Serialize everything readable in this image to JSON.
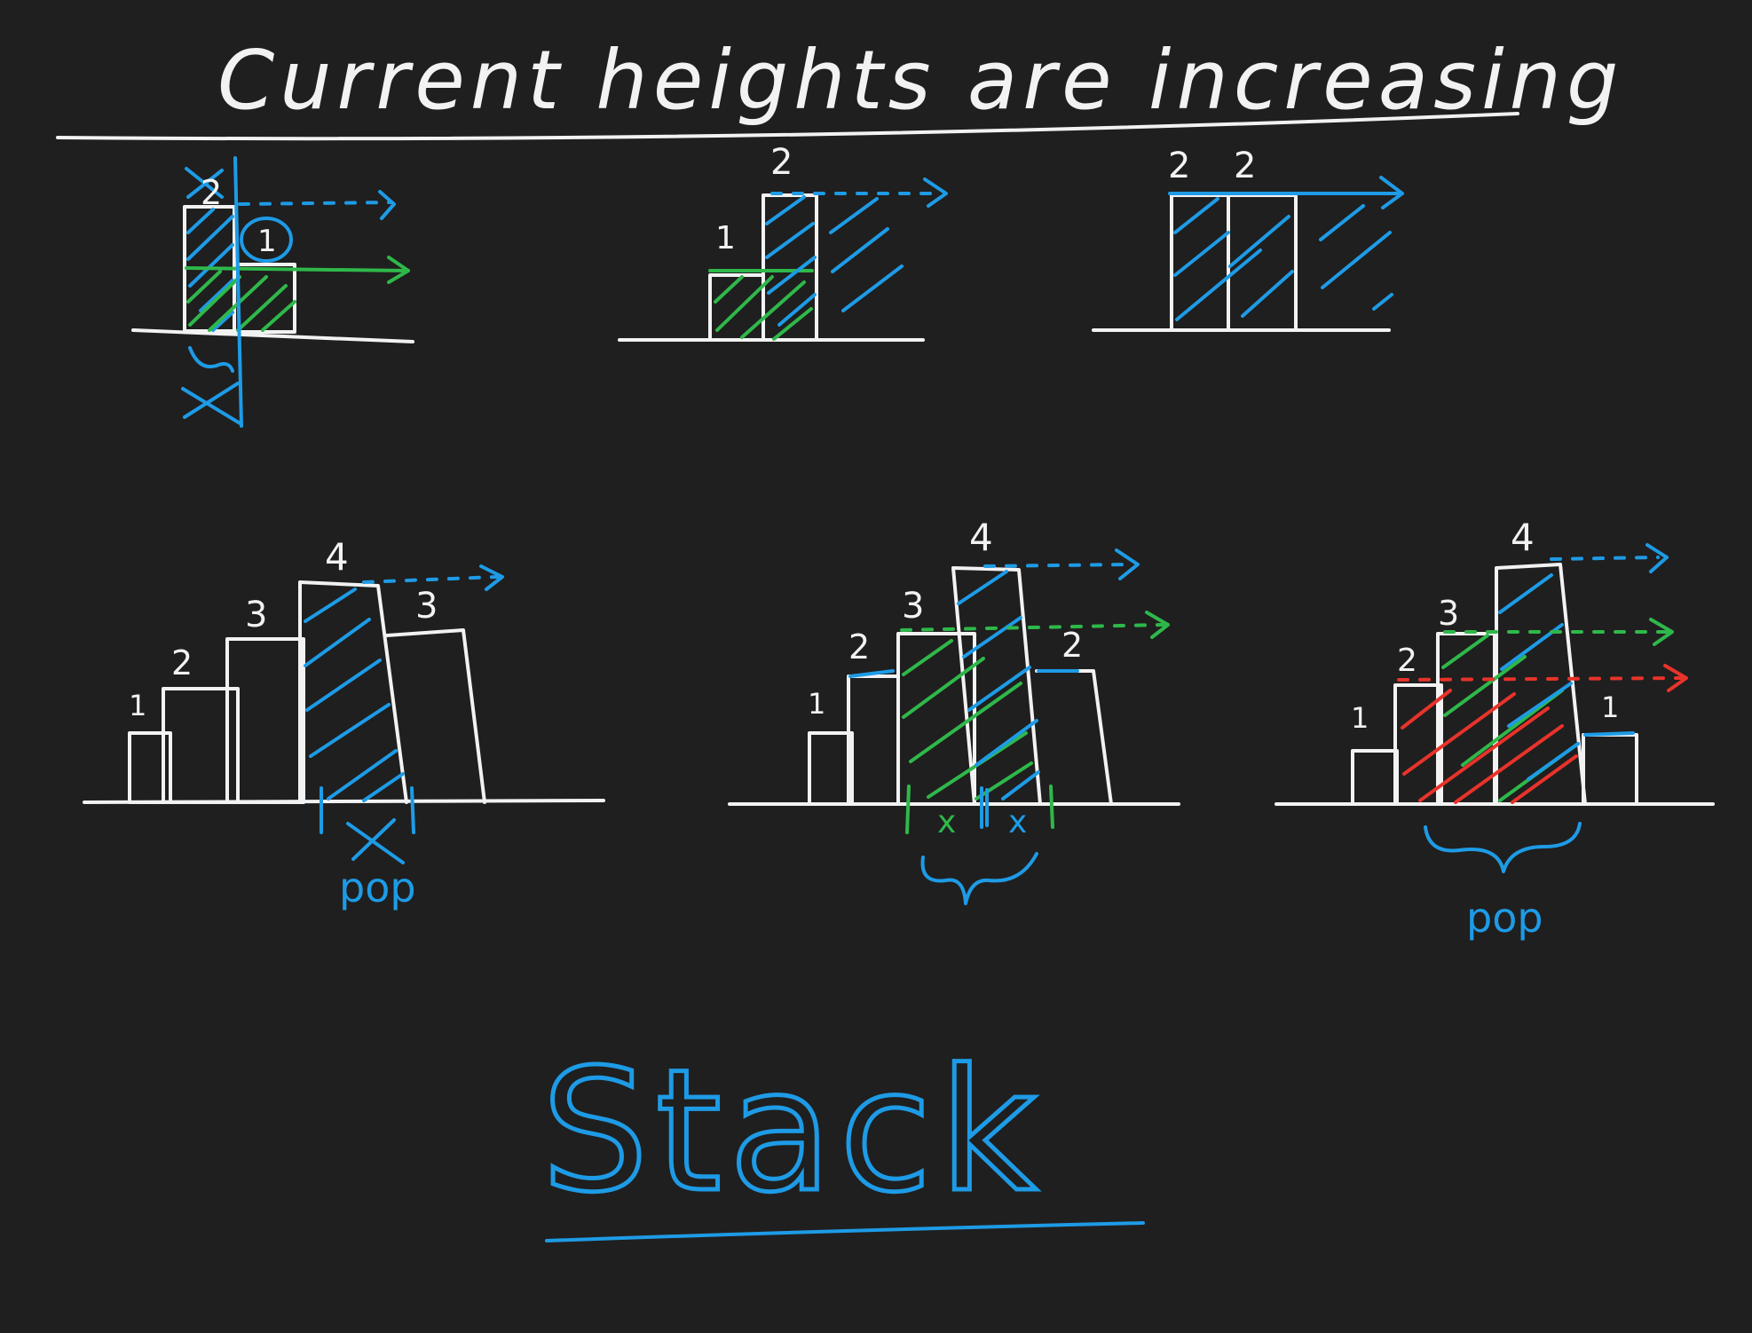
{
  "title": "Current heights are increasing",
  "colors": {
    "background": "#1f1f1f",
    "chalk": "#f2f2f2",
    "blue": "#1e9be6",
    "green": "#2fb84a",
    "red": "#e8332a"
  },
  "panels": [
    {
      "labels": {
        "bar1": "2",
        "circled": "1"
      }
    },
    {
      "labels": {
        "bar1": "1",
        "bar2": "2"
      }
    },
    {
      "labels": {
        "bar1": "2",
        "bar2": "2"
      }
    },
    {
      "labels": {
        "bar1": "1",
        "bar2": "2",
        "bar3": "3",
        "bar4": "4",
        "bar5": "3",
        "cross": "X",
        "note": "pop"
      }
    },
    {
      "labels": {
        "bar1": "1",
        "bar2": "2",
        "bar3": "3",
        "bar4": "4",
        "bar5": "2",
        "mark1": "x",
        "mark2": "x"
      }
    },
    {
      "labels": {
        "bar1": "1",
        "bar2": "2",
        "bar3": "3",
        "bar4": "4",
        "bar5": "1",
        "note": "pop"
      }
    }
  ],
  "footer": "Stack"
}
